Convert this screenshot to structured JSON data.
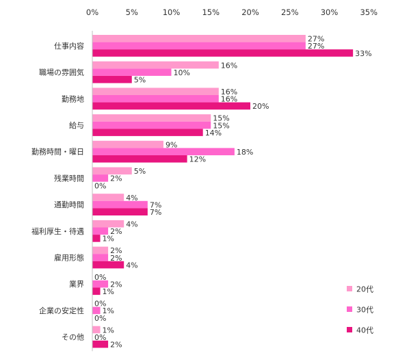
{
  "chart_data": {
    "type": "bar",
    "orientation": "horizontal",
    "categories": [
      "仕事内容",
      "職場の雰囲気",
      "勤務地",
      "給与",
      "勤務時間・曜日",
      "残業時間",
      "通勤時間",
      "福利厚生・待遇",
      "雇用形態",
      "業界",
      "企業の安定性",
      "その他"
    ],
    "series": [
      {
        "name": "20代",
        "color": "#ff99cc",
        "values": [
          27,
          16,
          16,
          15,
          9,
          5,
          4,
          4,
          2,
          0,
          0,
          1
        ]
      },
      {
        "name": "30代",
        "color": "#ff66cc",
        "values": [
          27,
          10,
          16,
          15,
          18,
          2,
          7,
          2,
          2,
          2,
          1,
          0
        ]
      },
      {
        "name": "40代",
        "color": "#e8157f",
        "values": [
          33,
          5,
          20,
          14,
          12,
          0,
          7,
          1,
          4,
          1,
          0,
          2
        ]
      }
    ],
    "xlim": [
      0,
      35
    ],
    "xticks": [
      0,
      5,
      10,
      15,
      20,
      25,
      30,
      35
    ],
    "tick_suffix": "%",
    "label_suffix": "%",
    "title": "",
    "xlabel": "",
    "ylabel": "",
    "grid": false,
    "legend_position": "bottom-right"
  }
}
